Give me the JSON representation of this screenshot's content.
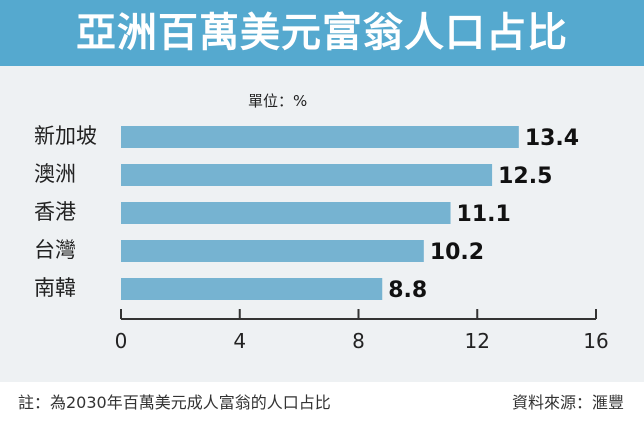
{
  "header": {
    "title": "亞洲百萬美元富翁人口占比"
  },
  "chart_data": {
    "type": "bar",
    "orientation": "horizontal",
    "title": "亞洲百萬美元富翁人口占比",
    "unit_label": "單位：%",
    "categories": [
      "新加坡",
      "澳洲",
      "香港",
      "台灣",
      "南韓"
    ],
    "values": [
      13.4,
      12.5,
      11.1,
      10.2,
      8.8
    ],
    "value_labels": [
      "13.4",
      "12.5",
      "11.1",
      "10.2",
      "8.8"
    ],
    "xlim": [
      0,
      16
    ],
    "x_ticks": [
      0,
      4,
      8,
      12,
      16
    ],
    "grid": false,
    "legend": "none"
  },
  "footer": {
    "note": "註：為2030年百萬美元成人富翁的人口占比",
    "source": "資料來源：滙豐"
  },
  "colors": {
    "header_bg": "#55a9cf",
    "panel_bg": "#eef1f3",
    "bar": "#76b3d1",
    "axis": "#333333",
    "text": "#222222"
  }
}
